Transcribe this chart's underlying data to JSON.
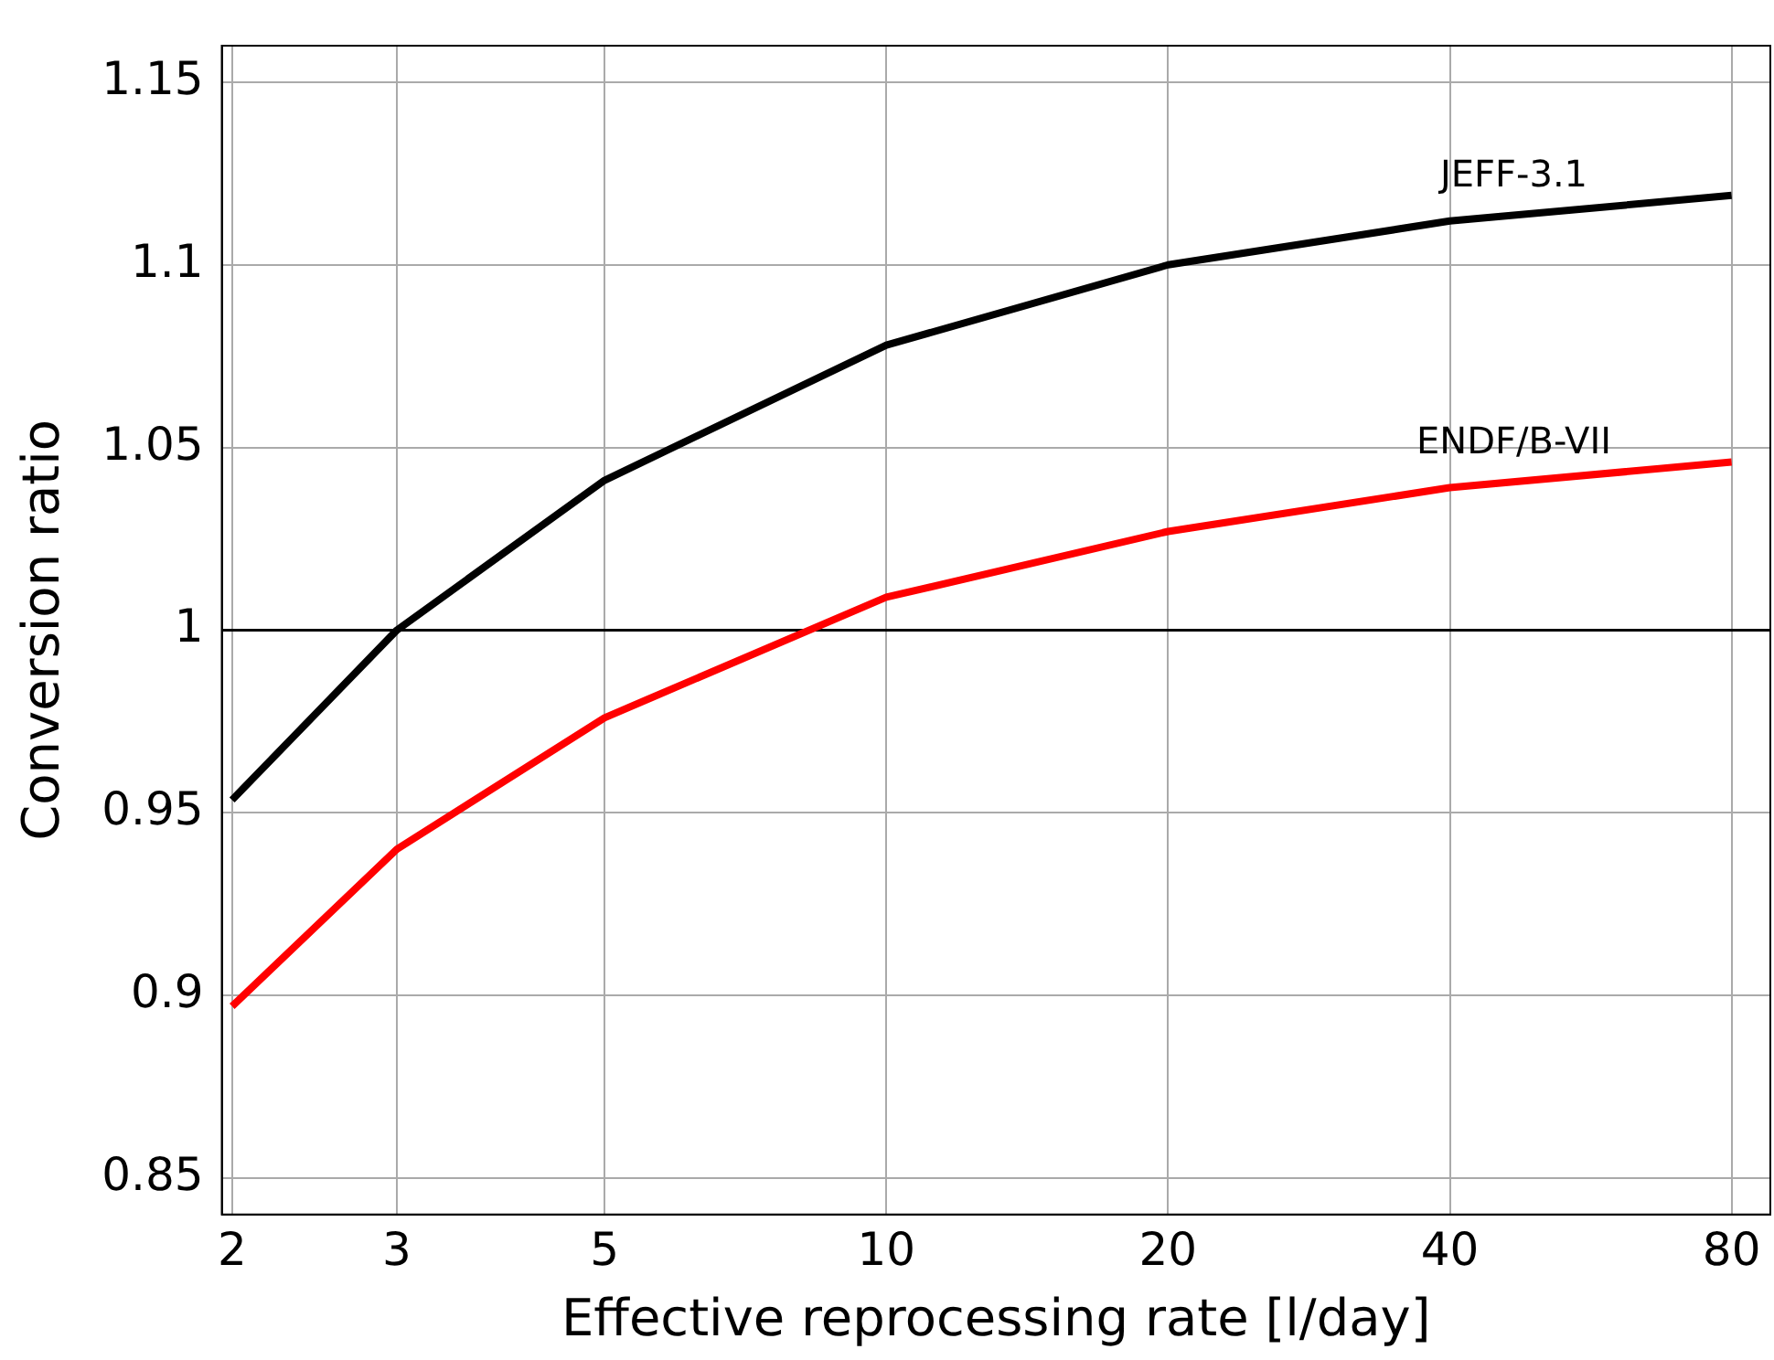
{
  "chart_data": {
    "type": "line",
    "xlabel": "Effective reprocessing rate [l/day]",
    "ylabel": "Conversion ratio",
    "x": [
      2,
      3,
      5,
      10,
      20,
      40,
      80
    ],
    "series": [
      {
        "name": "JEFF-3.1",
        "color": "#000000",
        "values": [
          0.9535,
          1.0,
          1.041,
          1.078,
          1.1,
          1.112,
          1.119
        ]
      },
      {
        "name": "ENDF/B-VII",
        "color": "#ff0000",
        "values": [
          0.897,
          0.94,
          0.976,
          1.009,
          1.027,
          1.039,
          1.046
        ]
      }
    ],
    "log": "x",
    "xlim": [
      1.95,
      88
    ],
    "xticks": [
      2,
      3,
      5,
      10,
      20,
      40,
      80
    ],
    "ylim": [
      0.84,
      1.16
    ],
    "yticks": [
      {
        "value": 0.85,
        "label": "0.85"
      },
      {
        "value": 0.9,
        "label": "0.9"
      },
      {
        "value": 0.95,
        "label": "0.95"
      },
      {
        "value": 1,
        "label": "1"
      },
      {
        "value": 1.05,
        "label": "1.05"
      },
      {
        "value": 1.1,
        "label": "1.1"
      },
      {
        "value": 1.15,
        "label": "1.15"
      }
    ],
    "ref_lines": [
      {
        "axis": "y",
        "value": 1,
        "color": "#000000"
      }
    ],
    "grid": true,
    "legend": false,
    "marker": "none",
    "line_style": "solid"
  }
}
